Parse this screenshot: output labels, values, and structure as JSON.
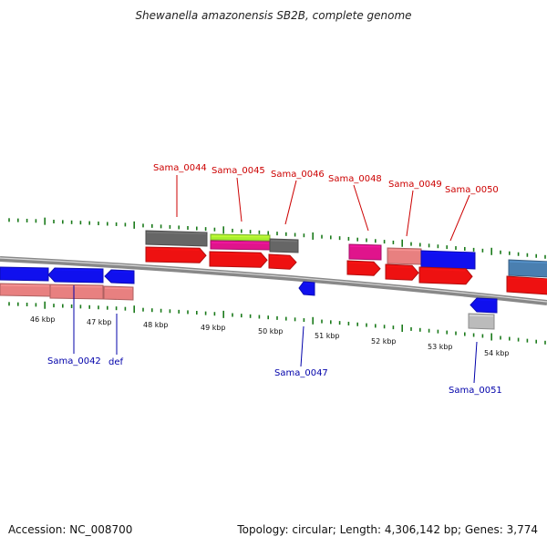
{
  "header": {
    "title": "Shewanella amazonensis SB2B, complete genome"
  },
  "footer": {
    "accession": "Accession: NC_008700",
    "stats": "Topology: circular; Length: 4,306,142 bp; Genes: 3,774"
  },
  "colors": {
    "forward_label": "#cc0000",
    "reverse_label": "#0000aa",
    "tick": "#1a7a1a",
    "backbone": "#888888",
    "red": "#ee1111",
    "blue": "#1010ee",
    "pink": "#e88080",
    "gray": "#666666",
    "magenta": "#e0148c",
    "lime": "#a8f030",
    "steel": "#4a7fb0",
    "lightgray": "#bbbbbb"
  },
  "scale": {
    "ticks": [
      {
        "label": "46 kbp",
        "name": "tick-46"
      },
      {
        "label": "47 kbp",
        "name": "tick-47"
      },
      {
        "label": "48 kbp",
        "name": "tick-48"
      },
      {
        "label": "49 kbp",
        "name": "tick-49"
      },
      {
        "label": "50 kbp",
        "name": "tick-50"
      },
      {
        "label": "51 kbp",
        "name": "tick-51"
      },
      {
        "label": "52 kbp",
        "name": "tick-52"
      },
      {
        "label": "53 kbp",
        "name": "tick-53"
      },
      {
        "label": "54 kbp",
        "name": "tick-54"
      }
    ]
  },
  "gene_labels": {
    "forward": [
      "Sama_0044",
      "Sama_0045",
      "Sama_0046",
      "Sama_0048",
      "Sama_0049",
      "Sama_0050"
    ],
    "reverse": [
      "Sama_0042",
      "def",
      "Sama_0047",
      "Sama_0051"
    ]
  }
}
